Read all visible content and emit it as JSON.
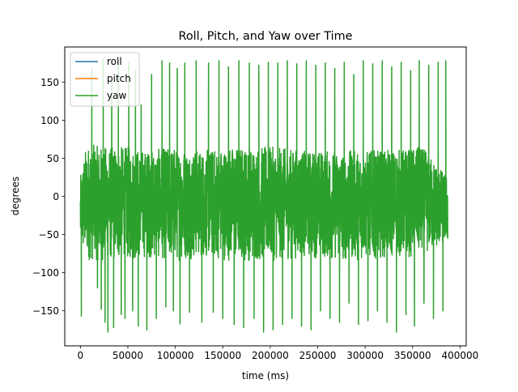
{
  "chart_data": {
    "type": "line",
    "title": "Roll, Pitch, and Yaw over Time",
    "xlabel": "time (ms)",
    "ylabel": "degrees",
    "xlim": [
      -16500,
      406500
    ],
    "ylim": [
      -196,
      196
    ],
    "xticks": [
      0,
      50000,
      100000,
      150000,
      200000,
      250000,
      300000,
      350000,
      400000
    ],
    "xtick_labels": [
      "0",
      "50000",
      "100000",
      "150000",
      "200000",
      "250000",
      "300000",
      "350000",
      "400000"
    ],
    "yticks": [
      -150,
      -100,
      -50,
      0,
      50,
      100,
      150
    ],
    "ytick_labels": [
      "−150",
      "−100",
      "−50",
      "0",
      "50",
      "100",
      "150"
    ],
    "x_range": [
      0,
      387000
    ],
    "y_extent": [
      -180,
      180
    ],
    "grid": false,
    "legend_position": "top-left",
    "series": [
      {
        "name": "roll",
        "color": "#1f77b4",
        "visible_in_plot": false
      },
      {
        "name": "pitch",
        "color": "#ff7f0e",
        "visible_in_plot": false
      },
      {
        "name": "yaw",
        "color": "#2ca02c",
        "visible_in_plot": true
      }
    ],
    "yaw_band": [
      {
        "x": 0,
        "low": -75,
        "high": 25
      },
      {
        "x": 5000,
        "low": -80,
        "high": 60
      },
      {
        "x": 10000,
        "low": -85,
        "high": 70
      },
      {
        "x": 20000,
        "low": -85,
        "high": 65
      },
      {
        "x": 30000,
        "low": -85,
        "high": 65
      },
      {
        "x": 50000,
        "low": -85,
        "high": 65
      },
      {
        "x": 70000,
        "low": -80,
        "high": 60
      },
      {
        "x": 100000,
        "low": -85,
        "high": 65
      },
      {
        "x": 130000,
        "low": -80,
        "high": 60
      },
      {
        "x": 160000,
        "low": -85,
        "high": 65
      },
      {
        "x": 200000,
        "low": -85,
        "high": 65
      },
      {
        "x": 240000,
        "low": -80,
        "high": 60
      },
      {
        "x": 280000,
        "low": -85,
        "high": 60
      },
      {
        "x": 320000,
        "low": -80,
        "high": 60
      },
      {
        "x": 360000,
        "low": -80,
        "high": 65
      },
      {
        "x": 387000,
        "low": -60,
        "high": 25
      }
    ],
    "yaw_spikes": [
      {
        "x": 1000,
        "y": -157
      },
      {
        "x": 12000,
        "y": 168
      },
      {
        "x": 18000,
        "y": -120
      },
      {
        "x": 22000,
        "y": -148
      },
      {
        "x": 24000,
        "y": 180
      },
      {
        "x": 26000,
        "y": -165
      },
      {
        "x": 29000,
        "y": -178
      },
      {
        "x": 33000,
        "y": 150
      },
      {
        "x": 35000,
        "y": -172
      },
      {
        "x": 40000,
        "y": 178
      },
      {
        "x": 43000,
        "y": -155
      },
      {
        "x": 47000,
        "y": -160
      },
      {
        "x": 51000,
        "y": 175
      },
      {
        "x": 55000,
        "y": -150
      },
      {
        "x": 58000,
        "y": 165
      },
      {
        "x": 61000,
        "y": -170
      },
      {
        "x": 64000,
        "y": 120
      },
      {
        "x": 70000,
        "y": -175
      },
      {
        "x": 75000,
        "y": 160
      },
      {
        "x": 80000,
        "y": -160
      },
      {
        "x": 86000,
        "y": 178
      },
      {
        "x": 90000,
        "y": -145
      },
      {
        "x": 94000,
        "y": 175
      },
      {
        "x": 98000,
        "y": -150
      },
      {
        "x": 102000,
        "y": 168
      },
      {
        "x": 105000,
        "y": -167
      },
      {
        "x": 110000,
        "y": 175
      },
      {
        "x": 115000,
        "y": -152
      },
      {
        "x": 122000,
        "y": 178
      },
      {
        "x": 128000,
        "y": -165
      },
      {
        "x": 135000,
        "y": 175
      },
      {
        "x": 140000,
        "y": -152
      },
      {
        "x": 146000,
        "y": 178
      },
      {
        "x": 150000,
        "y": -160
      },
      {
        "x": 156000,
        "y": 170
      },
      {
        "x": 162000,
        "y": -168
      },
      {
        "x": 167000,
        "y": 178
      },
      {
        "x": 172000,
        "y": -172
      },
      {
        "x": 178000,
        "y": 175
      },
      {
        "x": 183000,
        "y": -160
      },
      {
        "x": 188000,
        "y": 172
      },
      {
        "x": 193000,
        "y": -178
      },
      {
        "x": 198000,
        "y": 176
      },
      {
        "x": 203000,
        "y": -175
      },
      {
        "x": 208000,
        "y": 175
      },
      {
        "x": 213000,
        "y": -168
      },
      {
        "x": 218000,
        "y": 178
      },
      {
        "x": 223000,
        "y": -160
      },
      {
        "x": 228000,
        "y": 174
      },
      {
        "x": 233000,
        "y": -170
      },
      {
        "x": 238000,
        "y": 178
      },
      {
        "x": 243000,
        "y": -175
      },
      {
        "x": 248000,
        "y": 172
      },
      {
        "x": 253000,
        "y": -150
      },
      {
        "x": 258000,
        "y": 175
      },
      {
        "x": 263000,
        "y": -160
      },
      {
        "x": 268000,
        "y": 168
      },
      {
        "x": 273000,
        "y": -165
      },
      {
        "x": 278000,
        "y": 176
      },
      {
        "x": 283000,
        "y": -140
      },
      {
        "x": 288000,
        "y": 160
      },
      {
        "x": 293000,
        "y": -168
      },
      {
        "x": 298000,
        "y": 178
      },
      {
        "x": 303000,
        "y": -163
      },
      {
        "x": 308000,
        "y": 174
      },
      {
        "x": 313000,
        "y": -150
      },
      {
        "x": 318000,
        "y": 178
      },
      {
        "x": 323000,
        "y": -165
      },
      {
        "x": 328000,
        "y": 170
      },
      {
        "x": 333000,
        "y": -178
      },
      {
        "x": 338000,
        "y": 176
      },
      {
        "x": 343000,
        "y": -155
      },
      {
        "x": 348000,
        "y": 165
      },
      {
        "x": 352000,
        "y": -170
      },
      {
        "x": 357000,
        "y": 178
      },
      {
        "x": 362000,
        "y": -140
      },
      {
        "x": 367000,
        "y": 172
      },
      {
        "x": 372000,
        "y": -160
      },
      {
        "x": 377000,
        "y": 176
      },
      {
        "x": 382000,
        "y": -150
      },
      {
        "x": 385000,
        "y": 178
      },
      {
        "x": 387000,
        "y": -55
      }
    ]
  }
}
